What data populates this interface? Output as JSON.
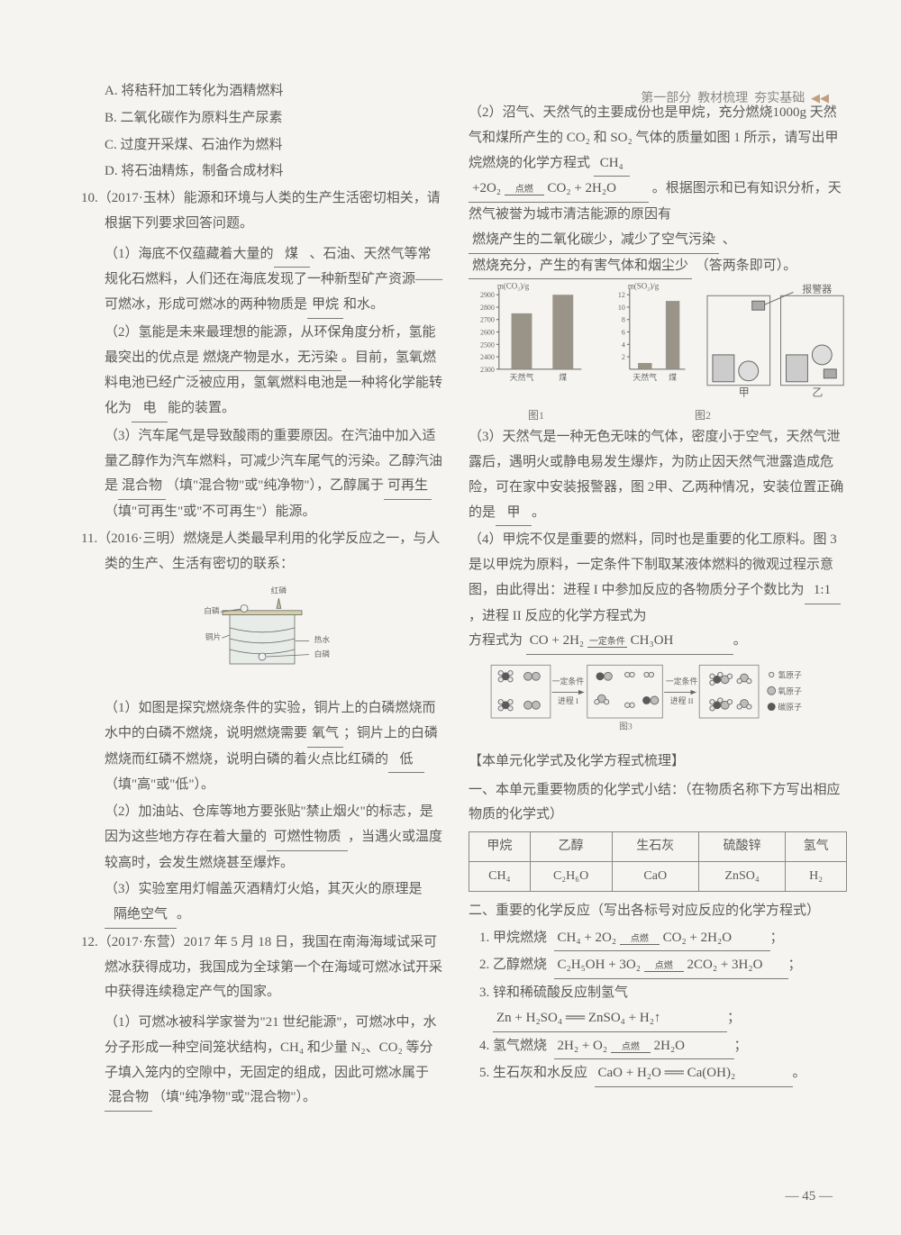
{
  "header": {
    "part": "第一部分",
    "section": "教材梳理",
    "sub": "夯实基础"
  },
  "left": {
    "optA": "A. 将秸秆加工转化为酒精燃料",
    "optB": "B. 二氧化碳作为原料生产尿素",
    "optC": "C. 过度开采煤、石油作为燃料",
    "optD": "D. 将石油精炼，制备合成材料",
    "q10_head": "10.（2017·玉林）能源和环境与人类的生产生活密切相关，请根据下列要求回答问题。",
    "q10_1a": "（1）海底不仅蕴藏着大量的",
    "q10_1_blank1": "煤",
    "q10_1b": "、石油、天然气等常规化石燃料，人们还在海底发现了一种新型矿产资源——可燃冰，形成可燃冰的两种物质是",
    "q10_1_blank2": "甲烷",
    "q10_1c": "和水。",
    "q10_2a": "（2）氢能是未来最理想的能源，从环保角度分析，氢能最突出的优点是",
    "q10_2_blank1": "燃烧产物是水，无污染",
    "q10_2b": "。目前，氢氧燃料电池已经广泛被应用，氢氧燃料电池是一种将化学能转化为",
    "q10_2_blank2": "电",
    "q10_2c": "能的装置。",
    "q10_3a": "（3）汽车尾气是导致酸雨的重要原因。在汽油中加入适量乙醇作为汽车燃料，可减少汽车尾气的污染。乙醇汽油是",
    "q10_3_blank1": "混合物",
    "q10_3b": "（填\"混合物\"或\"纯净物\"），乙醇属于",
    "q10_3_blank2": "可再生",
    "q10_3c": "（填\"可再生\"或\"不可再生\"）能源。",
    "q11_head": "11.（2016·三明）燃烧是人类最早利用的化学反应之一，与人类的生产、生活有密切的联系：",
    "q11_1a": "（1）如图是探究燃烧条件的实验，铜片上的白磷燃烧而水中的白磷不燃烧，说明燃烧需要",
    "q11_1_blank1": "氧气",
    "q11_1b": "；铜片上的白磷燃烧而红磷不燃烧，说明白磷的着火点比红磷的",
    "q11_1_blank2": "低",
    "q11_1c": "（填\"高\"或\"低\"）。",
    "q11_2a": "（2）加油站、仓库等地方要张贴\"禁止烟火\"的标志，是因为这些地方存在着大量的",
    "q11_2_blank1": "可燃性物质",
    "q11_2b": "，当遇火或温度较高时，会发生燃烧甚至爆炸。",
    "q11_3a": "（3）实验室用灯帽盖灭酒精灯火焰，其灭火的原理是",
    "q11_3_blank1": "隔绝空气",
    "q11_3b": "。",
    "q12_head": "12.（2017·东营）2017 年 5 月 18 日，我国在南海海域试采可燃冰获得成功，我国成为全球第一个在海域可燃冰试开采中获得连续稳定产气的国家。",
    "q12_1a": "（1）可燃冰被科学家誉为\"21 世纪能源\"，可燃冰中，水分子形成一种空间笼状结构，CH₄ 和少量 N₂、CO₂ 等分子填入笼内的空隙中，无固定的组成，因此可燃冰属于",
    "q12_1_blank1": "混合物",
    "q12_1b": "（填\"纯净物\"或\"混合物\"）。",
    "beaker": {
      "labels": {
        "red_p": "红磷",
        "white_p": "白磷",
        "copper": "铜片",
        "hot_water": "热水",
        "white_p2": "白磷"
      },
      "colors": {
        "water": "#d9e3e0",
        "outline": "#6a6a6a",
        "flame": "#a8a090"
      }
    }
  },
  "right": {
    "q2a": "（2）沼气、天然气的主要成份也是甲烷，充分燃烧1000g 天然气和煤所产生的 CO₂ 和 SO₂ 气体的质量如图 1 所示，请写出甲烷燃烧的化学方程式",
    "q2_blank1": "CH₄",
    "q2_blank1b": "+2O₂",
    "q2_cond": "点燃",
    "q2_blank1c": "CO₂ + 2H₂O",
    "q2b": "。根据图示和已有知识分析，天然气被誉为城市清洁能源的原因有",
    "q2_blank2": "燃烧产生的二氧化碳少，减少了空气污染",
    "q2c": "、",
    "q2_blank3": "燃烧充分，产生的有害气体和烟尘少",
    "q2d": "（答两条即可）。",
    "chart1": {
      "ylabel": "m(CO₂)/g",
      "yticks": [
        "2300",
        "2400",
        "2500",
        "2600",
        "2700",
        "2800",
        "2900"
      ],
      "cats": [
        "天然气",
        "煤"
      ],
      "values": [
        2750,
        2900
      ],
      "bar_color": "#9a9488",
      "ymin": 2300,
      "ymax": 2950,
      "w": 130,
      "h": 120
    },
    "chart2": {
      "ylabel": "m(SO₂)/g",
      "yticks": [
        "2",
        "4",
        "6",
        "8",
        "10",
        "12"
      ],
      "cats": [
        "天然气",
        "煤"
      ],
      "values": [
        1,
        11
      ],
      "bar_color": "#9a9488",
      "ymin": 0,
      "ymax": 13,
      "w": 100,
      "h": 120
    },
    "alarm_label": "报警器",
    "alarm_caption_left": "甲",
    "alarm_caption_right": "乙",
    "fig1_cap": "图1",
    "fig2_cap": "图2",
    "fig3_cap": "图3",
    "q3a": "（3）天然气是一种无色无味的气体，密度小于空气，天然气泄露后，遇明火或静电易发生爆炸，为防止因天然气泄露造成危险，可在家中安装报警器，图 2甲、乙两种情况，安装位置正确的是",
    "q3_blank1": "甲",
    "q3b": "。",
    "q4a": "（4）甲烷不仅是重要的燃料，同时也是重要的化工原料。图 3 是以甲烷为原料，一定条件下制取某液体燃料的微观过程示意图，由此得出：进程 I 中参加反应的各物质分子个数比为",
    "q4_blank1": "1:1",
    "q4b": "，进程 II 反应的化学方程式为",
    "q4_blank2_a": "CO + 2H₂",
    "q4_cond": "一定条件",
    "q4_blank2_b": "CH₃OH",
    "q4c": "。",
    "reaction": {
      "stage1": "一定条件 进程 I",
      "stage2": "一定条件 进程 II",
      "legend": {
        "h": "氢原子",
        "o": "氧原子",
        "c": "碳原子"
      },
      "colors": {
        "h": "#e8e8e8",
        "o": "#bdbdbd",
        "c": "#5a5a5a",
        "box": "#888"
      }
    },
    "review_head": "【本单元化学式及化学方程式梳理】",
    "review_1": "一、本单元重要物质的化学式小结：（在物质名称下方写出相应物质的化学式）",
    "table": {
      "row1": [
        "甲烷",
        "乙醇",
        "生石灰",
        "硫酸锌",
        "氢气"
      ],
      "row2": [
        "CH₄",
        "C₂H₆O",
        "CaO",
        "ZnSO₄",
        "H₂"
      ]
    },
    "review_2": "二、重要的化学反应（写出各标号对应反应的化学方程式）",
    "eq1_label": "1. 甲烷燃烧",
    "eq1": "CH₄ + 2O₂",
    "eq1_cond": "点燃",
    "eq1_r": "CO₂ + 2H₂O",
    "eq2_label": "2. 乙醇燃烧",
    "eq2": "C₂H₅OH + 3O₂",
    "eq2_cond": "点燃",
    "eq2_r": "2CO₂ + 3H₂O",
    "eq3_label": "3. 锌和稀硫酸反应制氢气",
    "eq3": "Zn + H₂SO₄ ══ ZnSO₄ + H₂↑",
    "eq4_label": "4. 氢气燃烧",
    "eq4": "2H₂ + O₂",
    "eq4_cond": "点燃",
    "eq4_r": "2H₂O",
    "eq5_label": "5. 生石灰和水反应",
    "eq5": "CaO + H₂O ══ Ca(OH)₂",
    "end": "；",
    "end2": "。"
  },
  "pagenum": "— 45 —"
}
